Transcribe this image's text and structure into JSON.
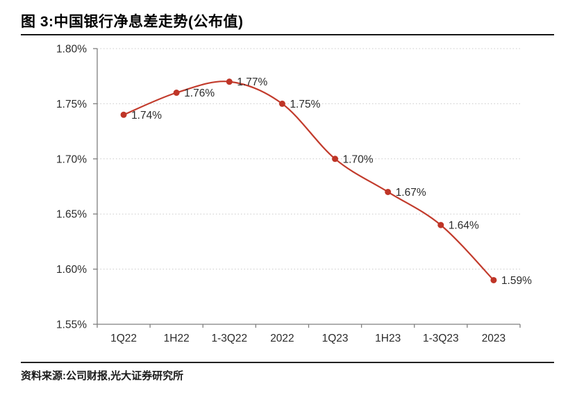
{
  "header": {
    "title": "图 3:中国银行净息差走势(公布值)"
  },
  "footer": {
    "source": "资料来源:公司财报,光大证券研究所"
  },
  "colors": {
    "series_line": "#c23b2c",
    "marker_fill": "#bf3527",
    "grid_line": "#c9c9c9",
    "axis_line": "#7f7f7f",
    "tick_text": "#2b2b2b",
    "point_label_text": "#2b2b2b",
    "rule": "#151515"
  },
  "chart_data": {
    "type": "line",
    "title": "中国银行净息差走势(公布值)",
    "categories": [
      "1Q22",
      "1H22",
      "1-3Q22",
      "2022",
      "1Q23",
      "1H23",
      "1-3Q23",
      "2023"
    ],
    "values": [
      1.74,
      1.76,
      1.77,
      1.75,
      1.7,
      1.67,
      1.64,
      1.59
    ],
    "point_labels": [
      "1.74%",
      "1.76%",
      "1.77%",
      "1.75%",
      "1.70%",
      "1.67%",
      "1.64%",
      "1.59%"
    ],
    "unit": "%",
    "ylim": [
      1.55,
      1.8
    ],
    "ytick_step": 0.05,
    "ytick_labels": [
      "1.80%",
      "1.75%",
      "1.70%",
      "1.65%",
      "1.60%",
      "1.55%"
    ],
    "grid": "horizontal-dotted",
    "legend": "none",
    "marker": "circle",
    "line_style": "smooth"
  }
}
